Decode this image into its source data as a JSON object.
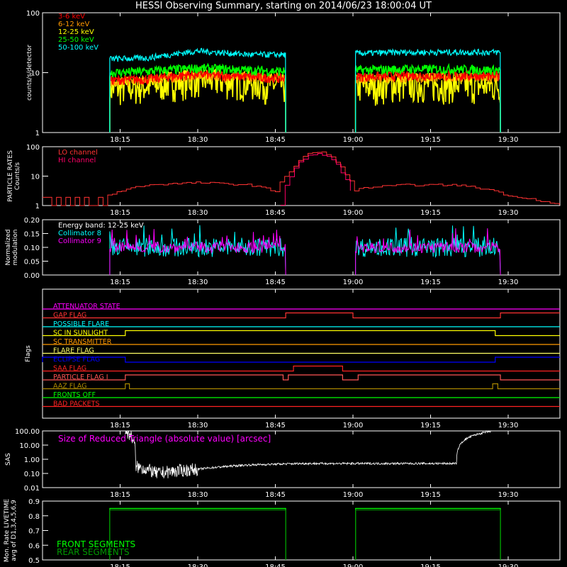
{
  "title": "HESSI Observing Summary, starting on 2014/06/23 18:00:04 UT",
  "chart_data": [
    {
      "type": "line",
      "panel": "count-rates",
      "ylabel": "counts/s/detector",
      "yscale": "log",
      "ylim": [
        1,
        100
      ],
      "yticks": [
        "1",
        "10",
        "100"
      ],
      "xrange_minutes": [
        0,
        100
      ],
      "xticks": [
        "18:15",
        "18:30",
        "18:45",
        "19:00",
        "19:15",
        "19:30"
      ],
      "series": [
        {
          "name": "3-6 keV",
          "color": "#ff0000",
          "x": [
            13,
            20,
            30,
            40,
            47
          ],
          "y": [
            7.5,
            7.8,
            9.5,
            8.5,
            8.0
          ],
          "x2": [
            60.5,
            70,
            80,
            88.5
          ],
          "y2": [
            8.5,
            9.0,
            9.0,
            8.8
          ]
        },
        {
          "name": "6-12 keV",
          "color": "#ff9900",
          "x": [
            13,
            20,
            30,
            40,
            47
          ],
          "y": [
            7.0,
            7.5,
            9.0,
            8.5,
            8.5
          ],
          "x2": [
            60.5,
            70,
            80,
            88.5
          ],
          "y2": [
            8.0,
            8.5,
            8.5,
            8.5
          ]
        },
        {
          "name": "12-25 keV",
          "color": "#ffff00",
          "x": [
            13,
            20,
            30,
            40,
            47
          ],
          "y": [
            5.5,
            6.0,
            8.0,
            7.0,
            6.0
          ],
          "x2": [
            60.5,
            70,
            80,
            88.5
          ],
          "y2": [
            6.0,
            6.5,
            6.5,
            6.0
          ]
        },
        {
          "name": "25-50 keV",
          "color": "#00ff00",
          "x": [
            13,
            20,
            30,
            40,
            47
          ],
          "y": [
            10,
            10.5,
            12,
            11,
            10.5
          ],
          "x2": [
            60.5,
            70,
            80,
            88.5
          ],
          "y2": [
            11,
            11.5,
            11.5,
            11
          ]
        },
        {
          "name": "50-100 keV",
          "color": "#00ffff",
          "x": [
            13,
            20,
            30,
            40,
            47
          ],
          "y": [
            17,
            17.5,
            23,
            20,
            20
          ],
          "x2": [
            60.5,
            70,
            80,
            88.5
          ],
          "y2": [
            21,
            22,
            22,
            22
          ]
        }
      ],
      "data_windows_minutes": [
        [
          13,
          47
        ],
        [
          60.5,
          88.5
        ]
      ]
    },
    {
      "type": "line",
      "panel": "particle-rates",
      "ylabel": "PARTICLE RATES Counts/s",
      "yscale": "log",
      "ylim": [
        1,
        100
      ],
      "yticks": [
        "1",
        "10",
        "100"
      ],
      "series": [
        {
          "name": "LO channel",
          "color": "#ff3333",
          "x": [
            0,
            5,
            9,
            12,
            20,
            30,
            40,
            45,
            48,
            50,
            52,
            54,
            56,
            58,
            60,
            62,
            70,
            80,
            88,
            90,
            92,
            100
          ],
          "y": [
            1,
            1,
            1,
            2,
            5,
            6,
            5,
            3,
            15,
            40,
            65,
            65,
            40,
            15,
            3,
            4,
            5,
            5,
            3,
            2,
            2,
            1
          ]
        },
        {
          "name": "HI channel",
          "color": "#ff0066",
          "x": [
            46,
            48,
            50,
            52,
            54,
            56,
            58,
            60
          ],
          "y": [
            1,
            10,
            35,
            55,
            55,
            35,
            10,
            1
          ]
        }
      ]
    },
    {
      "type": "line",
      "panel": "modulation",
      "ylabel": "Normalized modulation",
      "ylim": [
        0,
        0.2
      ],
      "yticks": [
        "0.00",
        "0.05",
        "0.10",
        "0.15",
        "0.20"
      ],
      "annotation": "Energy band: 12-25 keV",
      "series": [
        {
          "name": "Collimator 8",
          "color": "#00ffff",
          "x": [
            13,
            47,
            60.5,
            88.5
          ],
          "y": [
            0.1,
            0.1,
            0.1,
            0.1
          ]
        },
        {
          "name": "Collimator 9",
          "color": "#ff00ff",
          "x": [
            13,
            47,
            60.5,
            88.5
          ],
          "y": [
            0.1,
            0.1,
            0.1,
            0.1
          ]
        }
      ]
    },
    {
      "type": "line",
      "panel": "flags",
      "ylabel": "Flags",
      "flags": [
        {
          "name": "ATTENUATOR STATE",
          "color": "#ff00ff",
          "on": []
        },
        {
          "name": "GAP FLAG",
          "color": "#ff3333",
          "on": [
            [
              47,
              60
            ],
            [
              88.5,
              100
            ]
          ]
        },
        {
          "name": "POSSIBLE FLARE",
          "color": "#00ffff",
          "on": []
        },
        {
          "name": "SC IN SUNLIGHT",
          "color": "#ffff00",
          "on": [
            [
              16,
              87.5
            ]
          ]
        },
        {
          "name": "SC TRANSMITTER",
          "color": "#ff9900",
          "on": []
        },
        {
          "name": "FLARE FLAG",
          "color": "#ffff66",
          "on": []
        },
        {
          "name": "ECLIPSE FLAG",
          "color": "#0000ff",
          "on": [
            [
              0,
              16
            ],
            [
              87.5,
              100
            ]
          ]
        },
        {
          "name": "SAA FLAG",
          "color": "#ff2222",
          "on": [
            [
              48.5,
              58
            ]
          ]
        },
        {
          "name": "PARTICLE FLAG I",
          "color": "#ff5555",
          "on": [
            [
              16,
              46.5
            ],
            [
              47.5,
              58
            ],
            [
              61,
              88.5
            ]
          ]
        },
        {
          "name": "AAZ FLAG",
          "color": "#aa8800",
          "on": [
            [
              16,
              16.8
            ],
            [
              87,
              88
            ]
          ]
        },
        {
          "name": "FRONTS OFF",
          "color": "#00ff00",
          "on": []
        },
        {
          "name": "BAD PACKETS",
          "color": "#ff2222",
          "on": []
        }
      ]
    },
    {
      "type": "line",
      "panel": "sas",
      "ylabel": "SAS",
      "yscale": "log",
      "ylim": [
        0.01,
        100
      ],
      "yticks": [
        "0.01",
        "0.10",
        "1.00",
        "10.00",
        "100.00"
      ],
      "annotation": "Size of Reduced Triangle (absolute value) [arcsec]",
      "series": [
        {
          "name": "Size of Reduced Triangle",
          "color": "#ffffff",
          "x": [
            16,
            18,
            22,
            30,
            40,
            50,
            60,
            70,
            80,
            87
          ],
          "y": [
            100,
            0.3,
            0.1,
            0.2,
            0.4,
            0.5,
            0.5,
            0.5,
            0.5,
            100
          ]
        }
      ]
    },
    {
      "type": "line",
      "panel": "livetime",
      "ylabel": "Mon. Rate LIVETIME avg of D1,3,4,5,6,9",
      "ylim": [
        0.5,
        0.9
      ],
      "yticks": [
        "0.5",
        "0.6",
        "0.7",
        "0.8",
        "0.9"
      ],
      "series": [
        {
          "name": "FRONT SEGMENTS",
          "color": "#00ff00",
          "x": [
            13,
            47,
            60.5,
            88.5
          ],
          "y": [
            0.85,
            0.85,
            0.85,
            0.85
          ]
        },
        {
          "name": "REAR SEGMENTS",
          "color": "#009900",
          "x": [
            13,
            47,
            60.5,
            88.5
          ],
          "y": [
            0.84,
            0.84,
            0.84,
            0.84
          ]
        }
      ]
    }
  ]
}
